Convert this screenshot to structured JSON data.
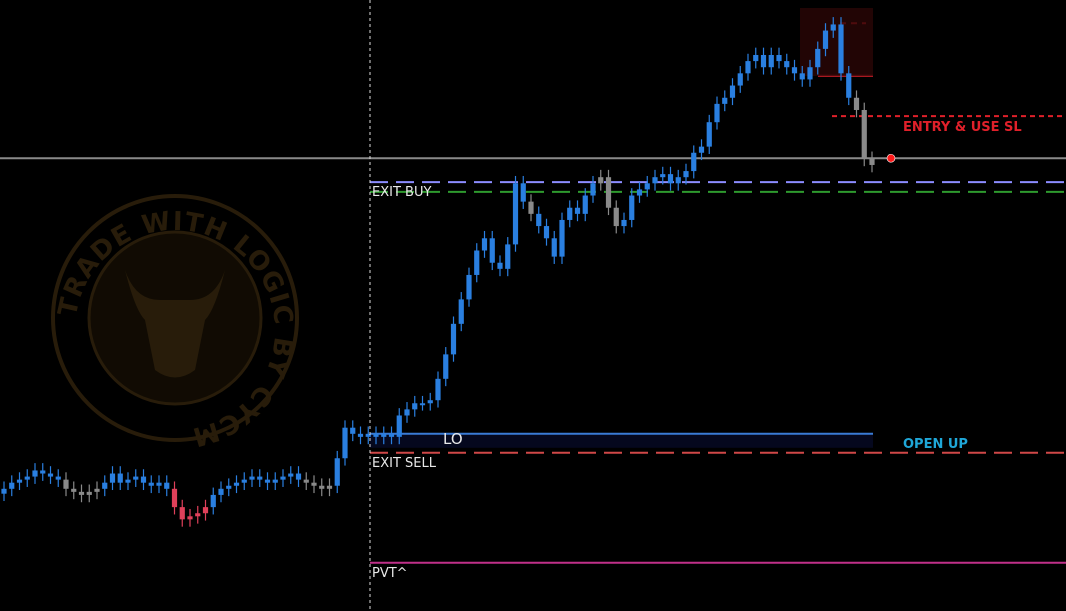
{
  "chart_data": {
    "type": "candlestick",
    "title": "",
    "xlabel": "",
    "ylabel": "",
    "ylim": [
      0,
      100
    ],
    "grid": false,
    "closes": [
      20,
      21,
      21.5,
      22,
      23,
      22.5,
      22,
      21.5,
      20,
      19.5,
      19,
      19.5,
      20,
      21,
      22.5,
      21,
      21.5,
      22,
      21,
      20.5,
      21,
      20,
      17,
      15,
      15.5,
      16,
      17,
      19,
      20,
      20.5,
      21,
      21.5,
      22,
      21.5,
      21,
      21.5,
      22,
      22.5,
      21.5,
      21,
      20.5,
      20,
      20.5,
      25,
      30,
      29,
      28.5,
      29,
      28.5,
      29,
      28.5,
      32,
      33,
      34,
      34,
      34.5,
      38,
      42,
      47,
      51,
      55,
      59,
      61,
      57,
      56,
      60,
      70,
      67,
      65,
      63,
      61,
      58,
      64,
      66,
      65,
      68,
      70,
      71,
      66,
      63,
      64,
      68,
      69,
      70,
      71,
      71.5,
      70,
      71,
      72,
      75,
      76,
      80,
      83,
      84,
      86,
      88,
      90,
      91,
      89,
      91,
      90,
      89,
      88,
      87,
      89,
      92,
      95,
      96,
      88,
      84,
      82,
      74,
      73
    ],
    "candle_colors": "bbbbbbbbgggggbbbbbbbbbrrrrrbbbbbbbbbbbbggggbbbbbbbbbbbbbbbbbbbbbbbbbgbbbbbbbbgggbbbbbbbbbbbbbbbbbbbbbbbbbbbbbbgggrr",
    "levels": [
      {
        "label": "",
        "value": 74.1,
        "style": "solid",
        "color": "#8a8a8a"
      },
      {
        "label": "EXIT BUY",
        "value": 70.2,
        "style": "dashed",
        "color": "#8c8cff"
      },
      {
        "label": "",
        "value": 68.6,
        "style": "dashed",
        "color": "#2e9a2e"
      },
      {
        "label": "ENTRY & USE SL",
        "value": 81,
        "style": "dotted",
        "color": "#e0202a"
      },
      {
        "label": "LO",
        "value": 29,
        "style": "solid",
        "color": "#3a7bd5"
      },
      {
        "label": "EXIT SELL",
        "value": 25.9,
        "style": "dashed",
        "color": "#d04848"
      },
      {
        "label": "PVT^",
        "value": 7.9,
        "style": "solid",
        "color": "#c0308a"
      }
    ],
    "annotations": [
      "OPEN UP",
      "ENTRY & USE SL"
    ],
    "signal_marker": {
      "value": 74.1,
      "color": "#ff1a1a"
    },
    "colors": {
      "up": "#2a7fe0",
      "down": "#8a8a8a",
      "alert": "#e0405a",
      "open_up": "#1fa7d8"
    }
  },
  "labels": {
    "exit_buy": "EXIT BUY",
    "exit_sell": "EXIT SELL",
    "lo": "LO",
    "open_up": "OPEN UP",
    "entry": "ENTRY & USE SL",
    "pvt": "PVT^"
  },
  "logo_text": "TRADE WITH LOGIC BY CYCM"
}
